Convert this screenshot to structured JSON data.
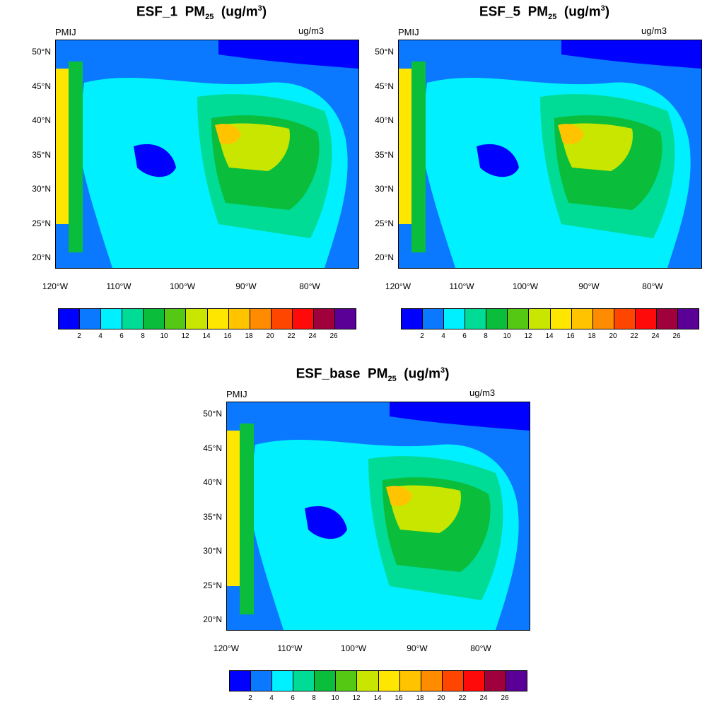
{
  "panels": [
    {
      "title_main": "ESF_1",
      "title_sub": "25",
      "title_unit_pre": "(ug/m",
      "title_unit_sup": "3",
      "title_unit_post": ")",
      "var": "PMIJ",
      "unit": "ug/m3"
    },
    {
      "title_main": "ESF_5",
      "title_sub": "25",
      "title_unit_pre": "(ug/m",
      "title_unit_sup": "3",
      "title_unit_post": ")",
      "var": "PMIJ",
      "unit": "ug/m3"
    },
    {
      "title_main": "ESF_base",
      "title_sub": "25",
      "title_unit_pre": "(ug/m",
      "title_unit_sup": "3",
      "title_unit_post": ")",
      "var": "PMIJ",
      "unit": "ug/m3"
    }
  ],
  "pm_label": "PM",
  "lat_labels": [
    "50°N",
    "45°N",
    "40°N",
    "35°N",
    "30°N",
    "25°N",
    "20°N"
  ],
  "lon_labels": [
    "120°W",
    "110°W",
    "100°W",
    "90°W",
    "80°W"
  ],
  "colorbar": {
    "colors": [
      "#0000ff",
      "#0a78ff",
      "#00f0ff",
      "#00dc96",
      "#0abe3c",
      "#55c814",
      "#c8e600",
      "#ffe600",
      "#ffc300",
      "#ff8c00",
      "#ff4600",
      "#ff0a0a",
      "#a0003c",
      "#5a0096"
    ],
    "labels": [
      "2",
      "4",
      "6",
      "8",
      "10",
      "12",
      "14",
      "16",
      "18",
      "20",
      "22",
      "24",
      "26"
    ]
  }
}
